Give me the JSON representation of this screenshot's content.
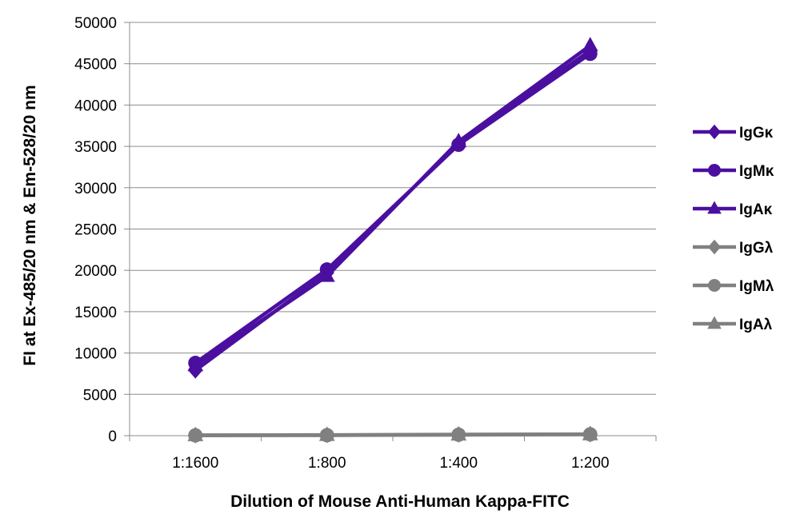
{
  "chart_data": {
    "type": "line",
    "title": "",
    "xlabel": "Dilution of Mouse Anti-Human Kappa-FITC",
    "ylabel": "FI at Ex-485/20 nm & Em-528/20 nm",
    "categories": [
      "1:1600",
      "1:800",
      "1:400",
      "1:200"
    ],
    "ylim": [
      0,
      50000
    ],
    "yticks": [
      0,
      5000,
      10000,
      15000,
      20000,
      25000,
      30000,
      35000,
      40000,
      45000,
      50000
    ],
    "grid": "horizontal",
    "legend_position": "right",
    "series": [
      {
        "name": "IgGκ",
        "marker": "diamond",
        "color": "#4b0fa0",
        "values": [
          7900,
          19700,
          35400,
          46600
        ]
      },
      {
        "name": "IgMκ",
        "marker": "circle",
        "color": "#4b0fa0",
        "values": [
          8800,
          20100,
          35200,
          46200
        ]
      },
      {
        "name": "IgAκ",
        "marker": "triangle",
        "color": "#4b0fa0",
        "values": [
          8500,
          19300,
          35600,
          47200
        ]
      },
      {
        "name": "IgGλ",
        "marker": "diamond",
        "color": "#808080",
        "values": [
          60,
          90,
          150,
          180
        ]
      },
      {
        "name": "IgMλ",
        "marker": "circle",
        "color": "#808080",
        "values": [
          40,
          60,
          120,
          160
        ]
      },
      {
        "name": "IgAλ",
        "marker": "triangle",
        "color": "#808080",
        "values": [
          30,
          50,
          100,
          140
        ]
      }
    ]
  }
}
